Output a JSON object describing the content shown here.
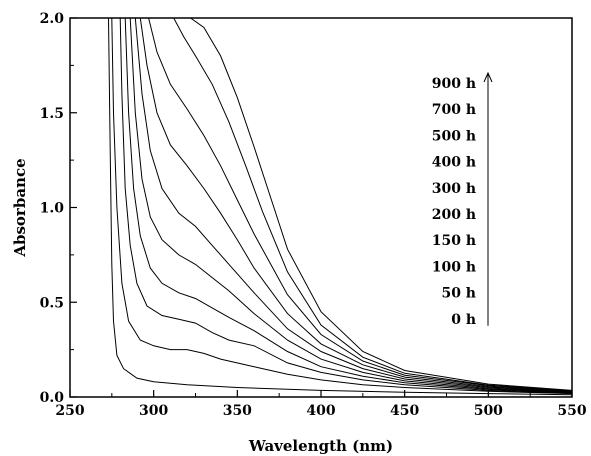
{
  "chart_data": {
    "type": "line",
    "title": "",
    "xlabel": "Wavelength (nm)",
    "ylabel": "Absorbance",
    "xlim": [
      250,
      550
    ],
    "ylim": [
      0.0,
      2.0
    ],
    "x_ticks": [
      250,
      300,
      350,
      400,
      450,
      500,
      550
    ],
    "y_ticks": [
      0.0,
      0.5,
      1.0,
      1.5,
      2.0
    ],
    "x_tick_labels": [
      "250",
      "300",
      "350",
      "400",
      "450",
      "500",
      "550"
    ],
    "y_tick_labels": [
      "0.0",
      "0.5",
      "1.0",
      "1.5",
      "2.0"
    ],
    "grid": false,
    "legend_position": "right",
    "legend_arrow": "up",
    "legend_order_top_to_bottom": [
      "900 h",
      "700 h",
      "500 h",
      "400 h",
      "300 h",
      "200 h",
      "150 h",
      "100 h",
      "50 h",
      "0 h"
    ],
    "series": [
      {
        "name": "0 h",
        "points": [
          [
            273,
            2.0
          ],
          [
            274,
            1.3
          ],
          [
            275,
            0.7
          ],
          [
            276,
            0.4
          ],
          [
            278,
            0.22
          ],
          [
            282,
            0.15
          ],
          [
            290,
            0.1
          ],
          [
            300,
            0.08
          ],
          [
            320,
            0.065
          ],
          [
            350,
            0.05
          ],
          [
            400,
            0.035
          ],
          [
            450,
            0.025
          ],
          [
            500,
            0.018
          ],
          [
            550,
            0.012
          ]
        ]
      },
      {
        "name": "50 h",
        "points": [
          [
            275,
            2.0
          ],
          [
            276,
            1.5
          ],
          [
            278,
            1.0
          ],
          [
            281,
            0.6
          ],
          [
            285,
            0.4
          ],
          [
            292,
            0.3
          ],
          [
            300,
            0.27
          ],
          [
            310,
            0.25
          ],
          [
            320,
            0.25
          ],
          [
            330,
            0.23
          ],
          [
            340,
            0.2
          ],
          [
            360,
            0.16
          ],
          [
            380,
            0.12
          ],
          [
            400,
            0.09
          ],
          [
            425,
            0.065
          ],
          [
            450,
            0.05
          ],
          [
            500,
            0.03
          ],
          [
            550,
            0.018
          ]
        ]
      },
      {
        "name": "100 h",
        "points": [
          [
            280,
            2.0
          ],
          [
            281,
            1.6
          ],
          [
            283,
            1.1
          ],
          [
            286,
            0.8
          ],
          [
            290,
            0.6
          ],
          [
            296,
            0.48
          ],
          [
            305,
            0.43
          ],
          [
            315,
            0.41
          ],
          [
            325,
            0.39
          ],
          [
            335,
            0.34
          ],
          [
            345,
            0.3
          ],
          [
            360,
            0.27
          ],
          [
            380,
            0.18
          ],
          [
            400,
            0.13
          ],
          [
            425,
            0.09
          ],
          [
            450,
            0.065
          ],
          [
            500,
            0.035
          ],
          [
            550,
            0.02
          ]
        ]
      },
      {
        "name": "150 h",
        "points": [
          [
            283,
            2.0
          ],
          [
            285,
            1.5
          ],
          [
            288,
            1.1
          ],
          [
            292,
            0.85
          ],
          [
            298,
            0.68
          ],
          [
            305,
            0.6
          ],
          [
            315,
            0.55
          ],
          [
            325,
            0.52
          ],
          [
            335,
            0.47
          ],
          [
            345,
            0.42
          ],
          [
            360,
            0.35
          ],
          [
            380,
            0.24
          ],
          [
            400,
            0.16
          ],
          [
            425,
            0.11
          ],
          [
            450,
            0.075
          ],
          [
            500,
            0.04
          ],
          [
            550,
            0.022
          ]
        ]
      },
      {
        "name": "200 h",
        "points": [
          [
            286,
            2.0
          ],
          [
            289,
            1.5
          ],
          [
            293,
            1.15
          ],
          [
            298,
            0.95
          ],
          [
            305,
            0.83
          ],
          [
            315,
            0.75
          ],
          [
            325,
            0.7
          ],
          [
            335,
            0.63
          ],
          [
            345,
            0.56
          ],
          [
            360,
            0.44
          ],
          [
            380,
            0.3
          ],
          [
            400,
            0.2
          ],
          [
            425,
            0.13
          ],
          [
            450,
            0.085
          ],
          [
            500,
            0.045
          ],
          [
            550,
            0.025
          ]
        ]
      },
      {
        "name": "300 h",
        "points": [
          [
            289,
            2.0
          ],
          [
            293,
            1.6
          ],
          [
            298,
            1.3
          ],
          [
            305,
            1.1
          ],
          [
            315,
            0.97
          ],
          [
            325,
            0.9
          ],
          [
            335,
            0.8
          ],
          [
            345,
            0.7
          ],
          [
            360,
            0.55
          ],
          [
            380,
            0.36
          ],
          [
            400,
            0.24
          ],
          [
            425,
            0.15
          ],
          [
            450,
            0.095
          ],
          [
            500,
            0.05
          ],
          [
            550,
            0.026
          ]
        ]
      },
      {
        "name": "400 h",
        "points": [
          [
            292,
            2.0
          ],
          [
            296,
            1.75
          ],
          [
            302,
            1.5
          ],
          [
            310,
            1.33
          ],
          [
            320,
            1.22
          ],
          [
            330,
            1.1
          ],
          [
            340,
            0.97
          ],
          [
            350,
            0.83
          ],
          [
            360,
            0.68
          ],
          [
            380,
            0.44
          ],
          [
            400,
            0.28
          ],
          [
            425,
            0.17
          ],
          [
            450,
            0.105
          ],
          [
            500,
            0.055
          ],
          [
            550,
            0.028
          ]
        ]
      },
      {
        "name": "500 h",
        "points": [
          [
            297,
            2.0
          ],
          [
            302,
            1.82
          ],
          [
            310,
            1.65
          ],
          [
            320,
            1.52
          ],
          [
            330,
            1.38
          ],
          [
            340,
            1.22
          ],
          [
            350,
            1.04
          ],
          [
            360,
            0.86
          ],
          [
            380,
            0.54
          ],
          [
            400,
            0.33
          ],
          [
            425,
            0.19
          ],
          [
            450,
            0.115
          ],
          [
            500,
            0.06
          ],
          [
            550,
            0.03
          ]
        ]
      },
      {
        "name": "700 h",
        "points": [
          [
            312,
            2.0
          ],
          [
            318,
            1.9
          ],
          [
            325,
            1.8
          ],
          [
            335,
            1.65
          ],
          [
            345,
            1.45
          ],
          [
            355,
            1.22
          ],
          [
            365,
            0.98
          ],
          [
            380,
            0.66
          ],
          [
            400,
            0.38
          ],
          [
            425,
            0.21
          ],
          [
            450,
            0.125
          ],
          [
            500,
            0.063
          ],
          [
            550,
            0.032
          ]
        ]
      },
      {
        "name": "900 h",
        "points": [
          [
            322,
            2.0
          ],
          [
            330,
            1.95
          ],
          [
            340,
            1.8
          ],
          [
            350,
            1.58
          ],
          [
            360,
            1.32
          ],
          [
            370,
            1.05
          ],
          [
            380,
            0.78
          ],
          [
            400,
            0.45
          ],
          [
            425,
            0.24
          ],
          [
            450,
            0.14
          ],
          [
            500,
            0.068
          ],
          [
            550,
            0.035
          ]
        ]
      }
    ]
  }
}
